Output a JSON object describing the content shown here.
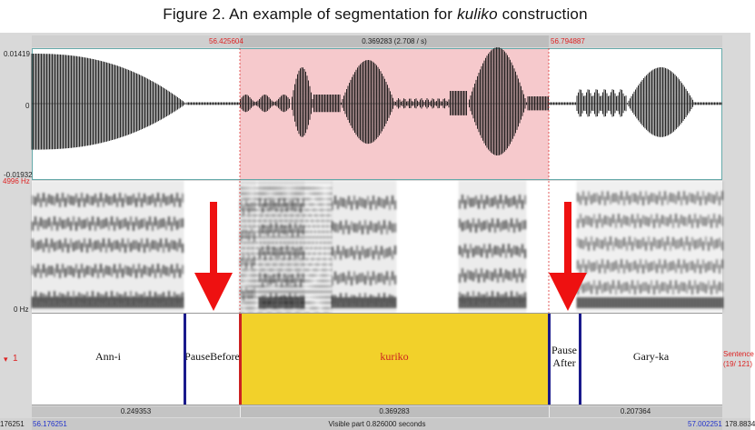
{
  "caption": {
    "prefix": "Figure 2. An example of segmentation for ",
    "italic": "kuliko",
    "suffix": " construction"
  },
  "selection": {
    "start": "56.425604",
    "end": "56.794887",
    "duration": "0.369283 (2.708 / s)"
  },
  "waveform": {
    "max": "0.01419",
    "zero": "0",
    "min": "-0.01932"
  },
  "spectrogram": {
    "top": "4996 Hz",
    "bottom": "0 Hz"
  },
  "tier": {
    "number": "1",
    "name": "Sentence",
    "count": "(19/ 121)",
    "intervals": [
      {
        "text": "Ann-i"
      },
      {
        "text": "PauseBefore"
      },
      {
        "text": "kuriko"
      },
      {
        "text": "Pause\nAfter"
      },
      {
        "text": "Gary-ka"
      }
    ]
  },
  "durations_row": {
    "left": "0.249353",
    "mid": "0.369283",
    "right": "0.207364"
  },
  "bottom_bar": {
    "left_edge": "176251",
    "window_start": "56.176251",
    "visible": "Visible part 0.826000 seconds",
    "window_end": "57.002251",
    "right_edge": "178.8834"
  },
  "colors": {
    "selection_wave": "#f6c9cc",
    "selection_interval": "#f2d12a",
    "boundary_blue": "#1a1a8c",
    "boundary_red": "#cc2222",
    "arrow": "#ee1111"
  }
}
